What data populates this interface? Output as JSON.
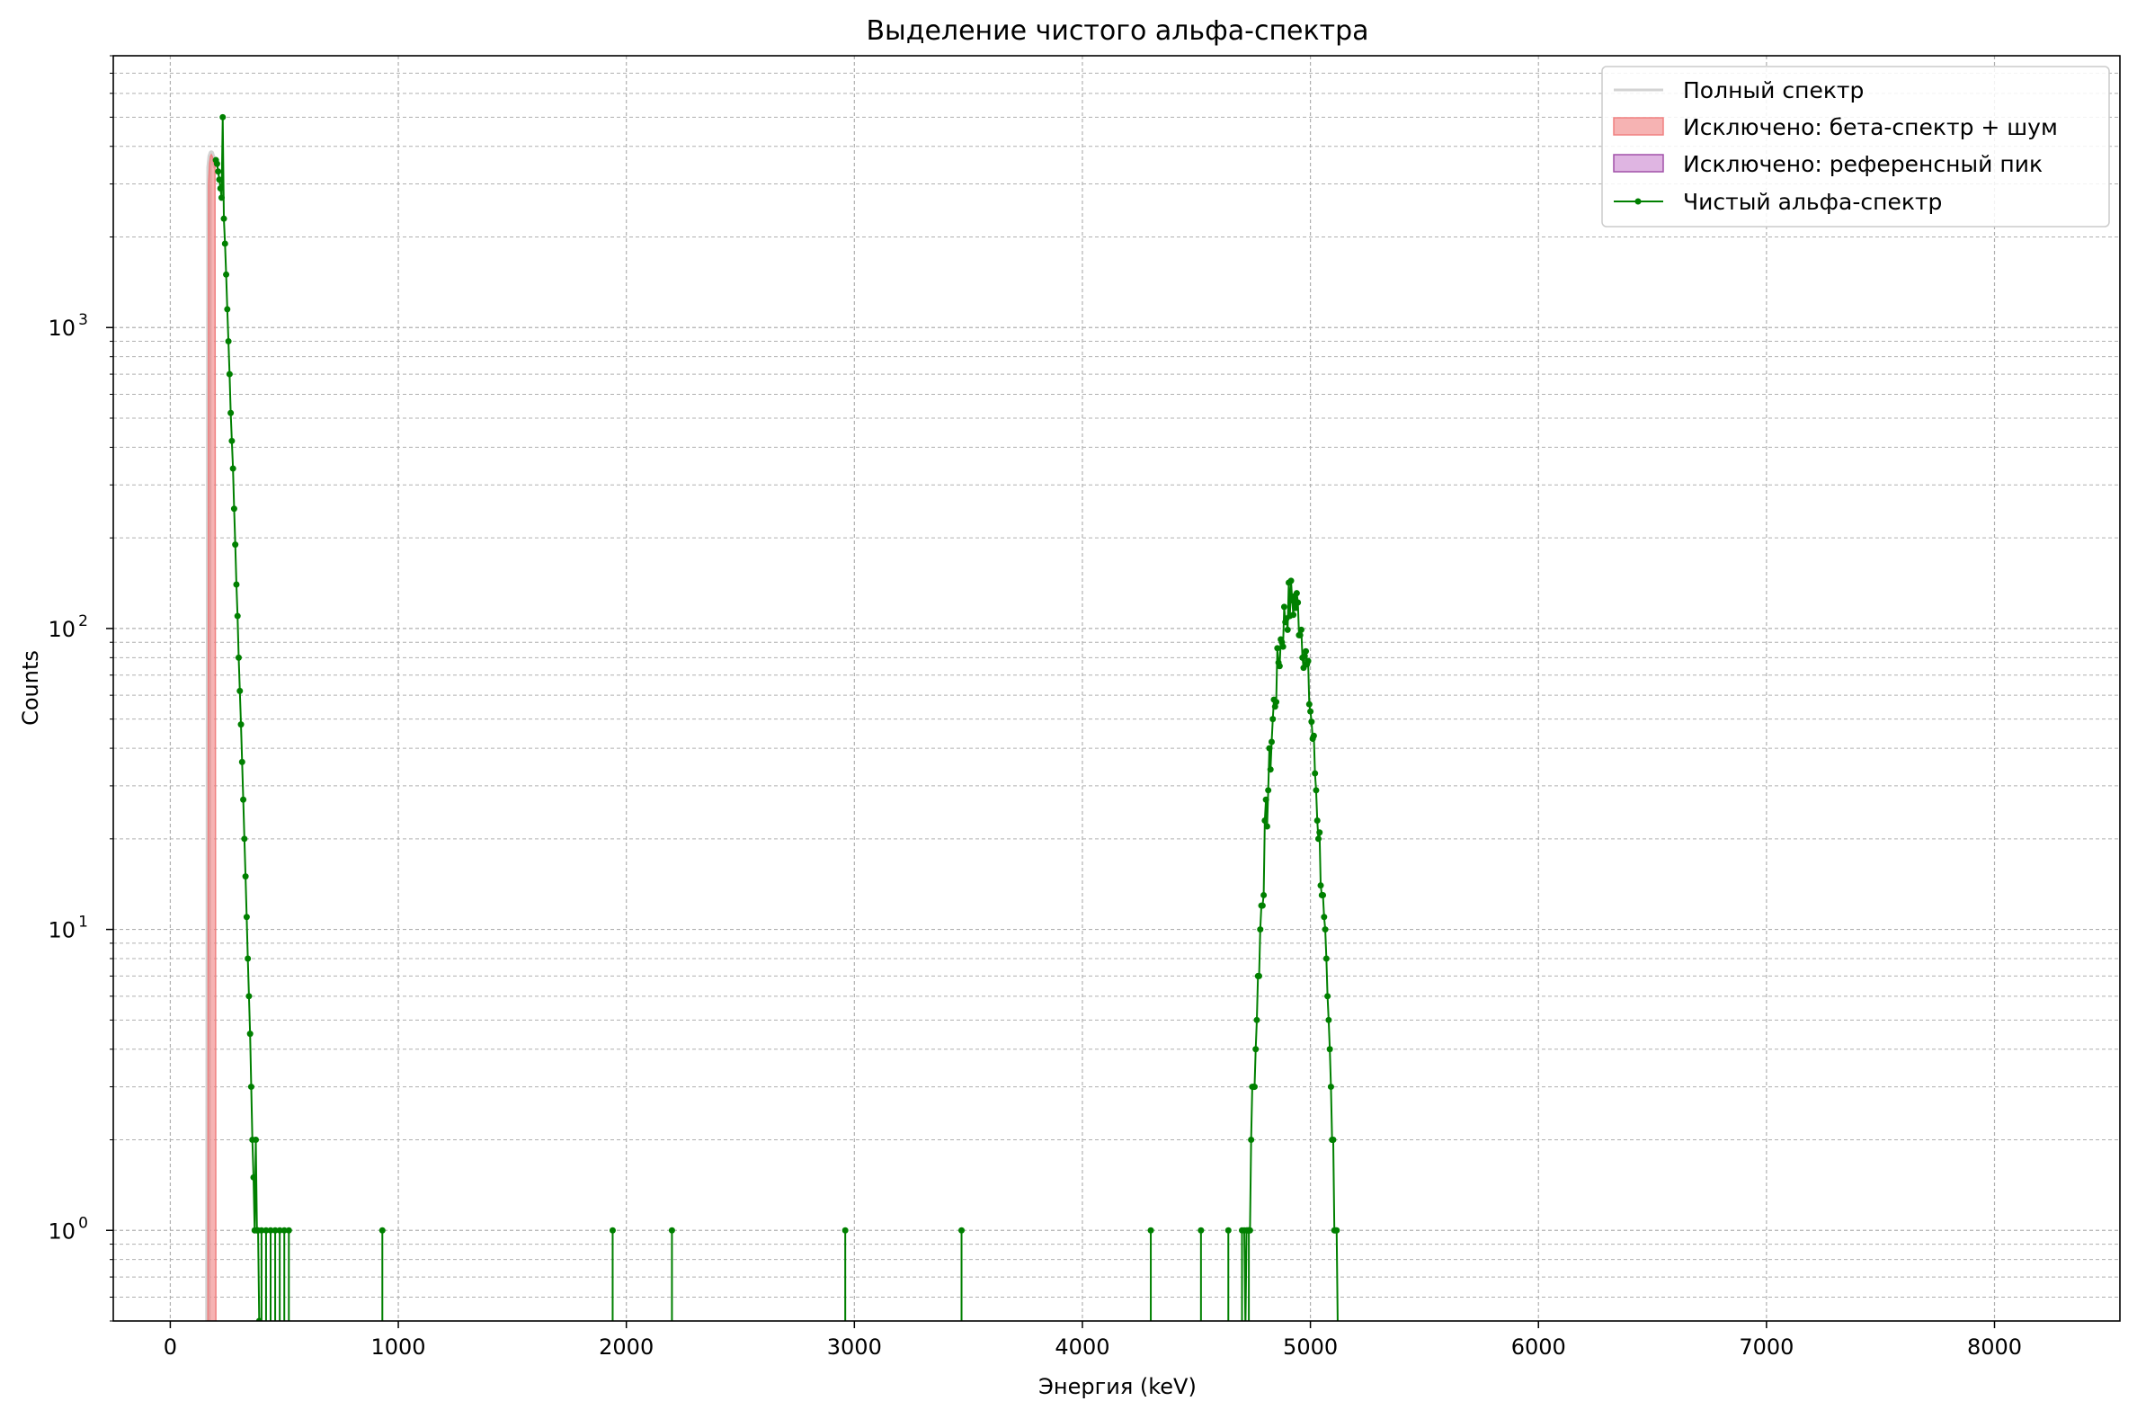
{
  "chart_data": {
    "type": "line",
    "title": "Выделение чистого альфа-спектра",
    "xlabel": "Энергия (keV)",
    "ylabel": "Counts",
    "xlim": [
      -250,
      8550
    ],
    "ylim": [
      0.5,
      8000
    ],
    "yscale": "log",
    "grid": true,
    "grid_minor": true,
    "legend_position": "top-right",
    "x_ticks": [
      0,
      1000,
      2000,
      3000,
      4000,
      5000,
      6000,
      7000,
      8000
    ],
    "x_tick_labels": [
      "0",
      "1000",
      "2000",
      "3000",
      "4000",
      "5000",
      "6000",
      "7000",
      "8000"
    ],
    "y_ticks": [
      1,
      10,
      100,
      1000
    ],
    "y_tick_labels": [
      {
        "base": "10",
        "exp": "0"
      },
      {
        "base": "10",
        "exp": "1"
      },
      {
        "base": "10",
        "exp": "2"
      },
      {
        "base": "10",
        "exp": "3"
      }
    ],
    "series": [
      {
        "name": "Полный спектр",
        "style": "line",
        "color": "#d3d3d3",
        "x": [
          165,
          170,
          175,
          180,
          185,
          190,
          195,
          200
        ],
        "y": [
          0.5,
          3400,
          3700,
          3800,
          3700,
          3600,
          3500,
          3400
        ]
      },
      {
        "name": "Исключено: бета-спектр + шум",
        "style": "fill",
        "color": "#f08080",
        "x": [
          165,
          168,
          172,
          176,
          180,
          184,
          188,
          192,
          196,
          200
        ],
        "y": [
          0.5,
          3000,
          3500,
          3700,
          3750,
          3700,
          3600,
          3500,
          3450,
          0.5
        ]
      },
      {
        "name": "Исключено: референсный пик",
        "style": "fill",
        "color": "#c983cf",
        "x": [],
        "y": []
      },
      {
        "name": "Чистый альфа-спектр",
        "style": "line-marker",
        "color": "#008000",
        "beta_part": {
          "x": [
            200,
            205,
            210,
            215,
            220,
            225,
            230,
            235,
            240,
            245,
            250,
            255,
            260,
            265,
            270,
            275,
            280,
            285,
            290,
            295,
            300,
            305,
            310,
            315,
            320,
            325,
            330,
            335,
            340,
            345,
            350,
            355,
            360,
            365,
            370,
            375,
            380,
            385,
            390
          ],
          "y": [
            3600,
            3500,
            3300,
            3100,
            2900,
            2700,
            5000,
            2300,
            1900,
            1500,
            1150,
            900,
            700,
            520,
            420,
            340,
            250,
            190,
            140,
            110,
            80,
            62,
            48,
            36,
            27,
            20,
            15,
            11,
            8,
            6,
            4.5,
            3,
            2,
            1.5,
            1,
            2,
            1,
            1,
            0.5
          ]
        },
        "alpha_peak": {
          "mu": 4920,
          "sigma": 62,
          "amplitude": 125,
          "x_start": 4710,
          "x_end": 5120,
          "step": 5
        },
        "sparse_ones_x": [
          400,
          420,
          440,
          460,
          480,
          500,
          520,
          930,
          1940,
          2200,
          2960,
          3470,
          4300,
          4520,
          4640,
          4700,
          4730
        ]
      }
    ]
  }
}
